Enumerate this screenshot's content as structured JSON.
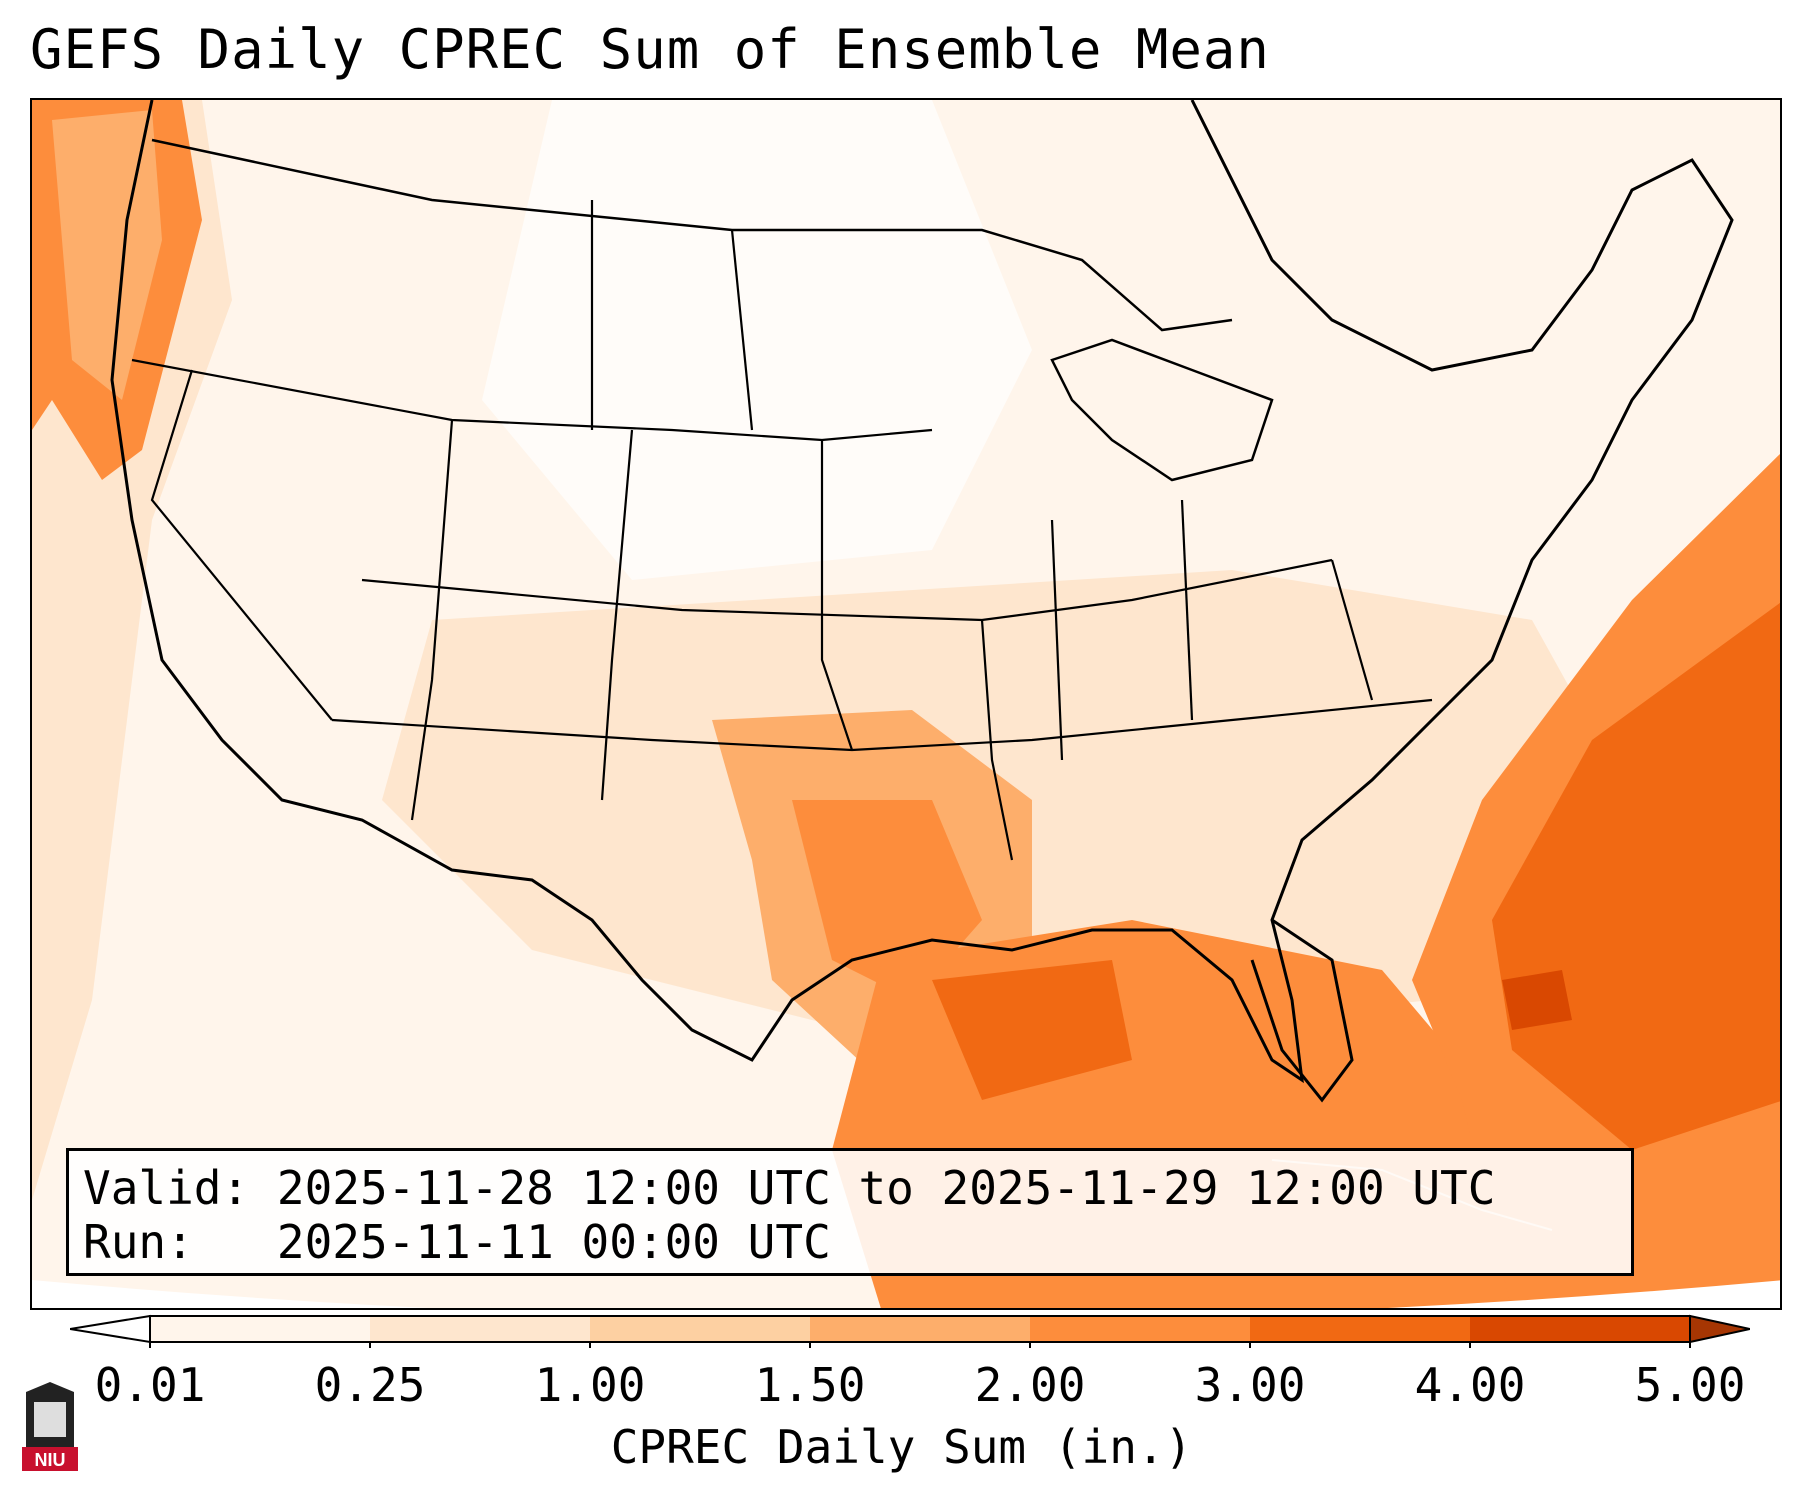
{
  "title": "GEFS Daily CPREC Sum of Ensemble Mean",
  "info": {
    "valid_label": "Valid:",
    "valid_value": "2025-11-28 12:00 UTC to 2025-11-29 12:00 UTC",
    "run_label": "Run:",
    "run_value": "2025-11-11 00:00 UTC"
  },
  "colorbar": {
    "label": "CPREC Daily Sum (in.)",
    "ticks": [
      "0.01",
      "0.25",
      "1.00",
      "1.50",
      "2.00",
      "3.00",
      "4.00",
      "5.00"
    ],
    "colors": [
      "#fff5eb",
      "#fee6ce",
      "#fdd0a2",
      "#fdae6b",
      "#fd8d3c",
      "#f16913",
      "#d94801",
      "#a63603"
    ],
    "extend": "both"
  },
  "logo": {
    "text": "NIU",
    "colors": {
      "red": "#c8102e",
      "dark": "#222222"
    }
  },
  "map": {
    "region": "Continental United States",
    "heavy_precip_areas": [
      "Gulf of Mexico",
      "Southeast coast",
      "Western Atlantic",
      "Pacific Northwest coast"
    ]
  }
}
